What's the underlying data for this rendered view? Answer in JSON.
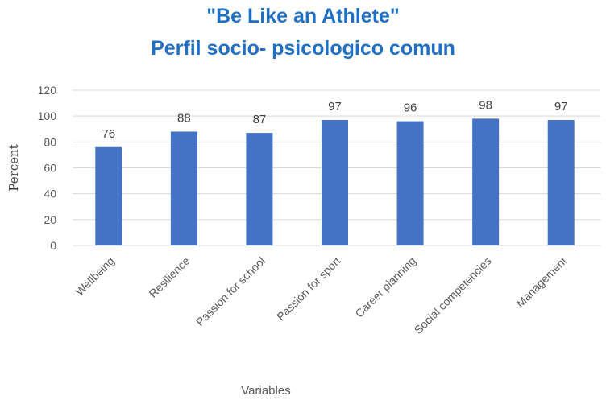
{
  "chart_data": {
    "type": "bar",
    "title": [
      "\"Be Like an Athlete\"",
      "Perfil socio- psicologico comun"
    ],
    "categories": [
      "Wellbeing",
      "Resilience",
      "Passion for school",
      "Passion for sport",
      "Career planning",
      "Social competencies",
      "Management"
    ],
    "values": [
      76,
      88,
      87,
      97,
      96,
      98,
      97
    ],
    "xlabel": "Variables",
    "ylabel": "Percent",
    "ylim": [
      0,
      120
    ],
    "yticks": [
      0,
      20,
      40,
      60,
      80,
      100,
      120
    ],
    "grid": true,
    "legend": "none",
    "colors": {
      "bar": "#4472c4",
      "title": "#1f6fc4",
      "grid": "#d9d9d9"
    }
  }
}
